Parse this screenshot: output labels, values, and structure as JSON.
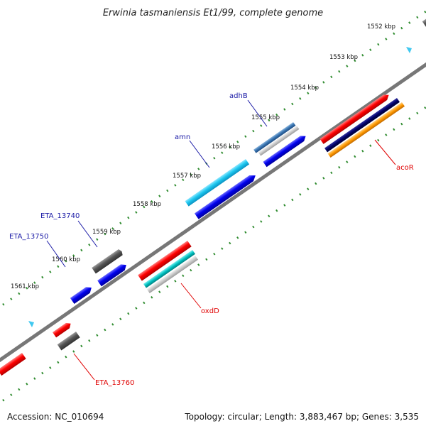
{
  "title": "Erwinia tasmaniensis Et1/99, complete genome",
  "ticks": [
    "1552 kbp",
    "1553 kbp",
    "1554 kbp",
    "1555 kbp",
    "1556 kbp",
    "1557 kbp",
    "1558 kbp",
    "1559 kbp",
    "1560 kbp",
    "1561 kbp"
  ],
  "labels": {
    "adhB": "adhB",
    "amn": "amn",
    "eta13740": "ETA_13740",
    "eta13750": "ETA_13750",
    "acoR": "acoR",
    "oxdD": "oxdD",
    "eta13760": "ETA_13760"
  },
  "footer": {
    "accession": "Accession: NC_010694",
    "stats": "Topology: circular; Length: 3,883,467 bp; Genes: 3,535"
  },
  "colors": {
    "backbone": "#777777",
    "green_dots": "#2e8b2e",
    "red": "#ff0000",
    "blue": "#0000ee",
    "cyan": "#1ec8f0",
    "teal": "#00c0c0",
    "gray": "#555555",
    "steelblue": "#3c78b4",
    "navy": "#000066",
    "orange": "#ff9900",
    "label_blue": "#1a1aa6",
    "label_red": "#e00000"
  }
}
